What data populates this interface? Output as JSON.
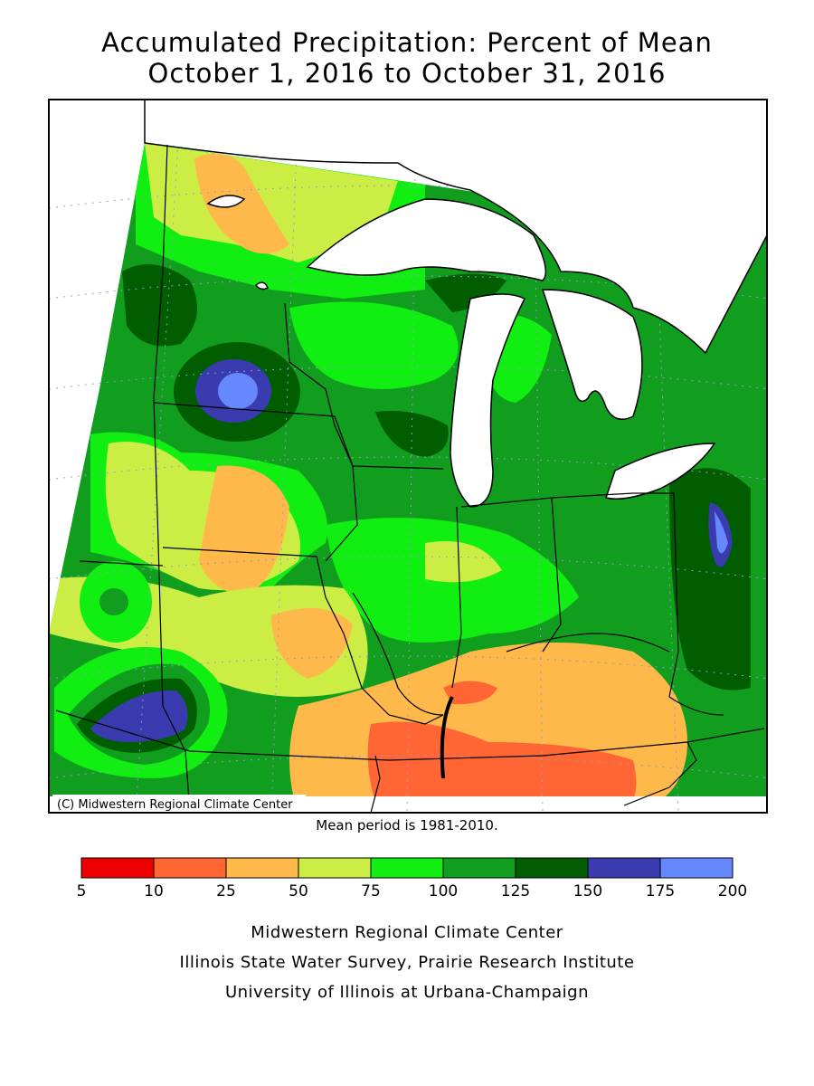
{
  "title": {
    "line1": "Accumulated Precipitation: Percent of Mean",
    "line2": "October 1, 2016 to October 31, 2016"
  },
  "map": {
    "copyright": "(C) Midwestern Regional Climate Center",
    "mean_period": "Mean period is 1981-2010."
  },
  "legend": {
    "bins": [
      {
        "from": 5,
        "to": 10,
        "color": "#ee0000"
      },
      {
        "from": 10,
        "to": 25,
        "color": "#ff6633"
      },
      {
        "from": 25,
        "to": 50,
        "color": "#ffb84a"
      },
      {
        "from": 50,
        "to": 75,
        "color": "#ccee44"
      },
      {
        "from": 75,
        "to": 100,
        "color": "#11ee11"
      },
      {
        "from": 100,
        "to": 125,
        "color": "#119e1e"
      },
      {
        "from": 125,
        "to": 150,
        "color": "#005e00"
      },
      {
        "from": 150,
        "to": 175,
        "color": "#3b3bb0"
      },
      {
        "from": 175,
        "to": 200,
        "color": "#6688ff"
      }
    ],
    "ticks": [
      "5",
      "10",
      "25",
      "50",
      "75",
      "100",
      "125",
      "150",
      "175",
      "200"
    ]
  },
  "credits": [
    "Midwestern Regional Climate Center",
    "Illinois State Water Survey, Prairie Research Institute",
    "University of Illinois at Urbana-Champaign"
  ]
}
